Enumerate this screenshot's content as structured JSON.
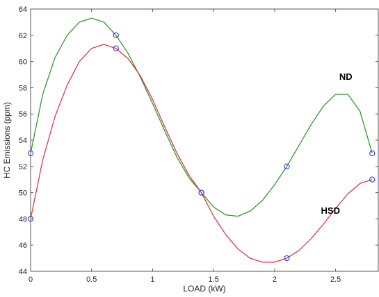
{
  "chart_data": {
    "type": "line",
    "xlabel": "LOAD (kW)",
    "ylabel": "HC Emissions (ppm)",
    "xlim": [
      0,
      2.85
    ],
    "ylim": [
      44,
      64
    ],
    "xticks": [
      0,
      0.5,
      1,
      1.5,
      2,
      2.5
    ],
    "xtick_labels": [
      "0",
      "0.5",
      "1",
      "1.5",
      "2",
      "2.5"
    ],
    "yticks": [
      44,
      46,
      48,
      50,
      52,
      54,
      56,
      58,
      60,
      62,
      64
    ],
    "ytick_labels": [
      "44",
      "46",
      "48",
      "50",
      "52",
      "54",
      "56",
      "58",
      "60",
      "62",
      "64"
    ],
    "grid": false,
    "series": [
      {
        "name": "ND",
        "color": "#2e9a2e",
        "marker_color": "#3a3ad0",
        "points": [
          [
            0,
            53
          ],
          [
            0.7,
            62
          ],
          [
            1.4,
            50
          ],
          [
            2.1,
            52
          ],
          [
            2.8,
            53
          ]
        ],
        "curve": [
          [
            0,
            53
          ],
          [
            0.1,
            57.5
          ],
          [
            0.2,
            60.3
          ],
          [
            0.3,
            62.0
          ],
          [
            0.4,
            63.0
          ],
          [
            0.5,
            63.3
          ],
          [
            0.6,
            63.0
          ],
          [
            0.7,
            62.0
          ],
          [
            0.8,
            60.6
          ],
          [
            0.9,
            58.8
          ],
          [
            1.0,
            56.8
          ],
          [
            1.1,
            54.7
          ],
          [
            1.2,
            52.7
          ],
          [
            1.3,
            51.1
          ],
          [
            1.4,
            50.0
          ],
          [
            1.5,
            48.9
          ],
          [
            1.6,
            48.3
          ],
          [
            1.7,
            48.2
          ],
          [
            1.8,
            48.6
          ],
          [
            1.9,
            49.4
          ],
          [
            2.0,
            50.6
          ],
          [
            2.1,
            52.0
          ],
          [
            2.2,
            53.6
          ],
          [
            2.3,
            55.2
          ],
          [
            2.4,
            56.6
          ],
          [
            2.5,
            57.5
          ],
          [
            2.6,
            57.5
          ],
          [
            2.7,
            56.2
          ],
          [
            2.8,
            53.0
          ]
        ]
      },
      {
        "name": "HSD",
        "color": "#d83a4a",
        "marker_color": "#3a3ad0",
        "points": [
          [
            0,
            48
          ],
          [
            0.7,
            61
          ],
          [
            1.4,
            50
          ],
          [
            2.1,
            45
          ],
          [
            2.8,
            51
          ]
        ],
        "curve": [
          [
            0,
            48
          ],
          [
            0.1,
            52.5
          ],
          [
            0.2,
            55.8
          ],
          [
            0.3,
            58.2
          ],
          [
            0.4,
            60.0
          ],
          [
            0.5,
            61.0
          ],
          [
            0.6,
            61.3
          ],
          [
            0.7,
            61.0
          ],
          [
            0.8,
            60.2
          ],
          [
            0.9,
            58.9
          ],
          [
            1.0,
            57.1
          ],
          [
            1.1,
            55.0
          ],
          [
            1.2,
            53.0
          ],
          [
            1.3,
            51.3
          ],
          [
            1.4,
            50.0
          ],
          [
            1.5,
            48.2
          ],
          [
            1.6,
            46.8
          ],
          [
            1.7,
            45.7
          ],
          [
            1.8,
            45.0
          ],
          [
            1.9,
            44.7
          ],
          [
            2.0,
            44.7
          ],
          [
            2.1,
            45.0
          ],
          [
            2.2,
            45.6
          ],
          [
            2.3,
            46.5
          ],
          [
            2.4,
            47.6
          ],
          [
            2.5,
            48.8
          ],
          [
            2.6,
            49.9
          ],
          [
            2.7,
            50.7
          ],
          [
            2.8,
            51.0
          ]
        ]
      }
    ],
    "annotations": [
      {
        "text": "ND",
        "x": 2.53,
        "y": 58.6
      },
      {
        "text": "HSD",
        "x": 2.38,
        "y": 48.4
      }
    ]
  }
}
